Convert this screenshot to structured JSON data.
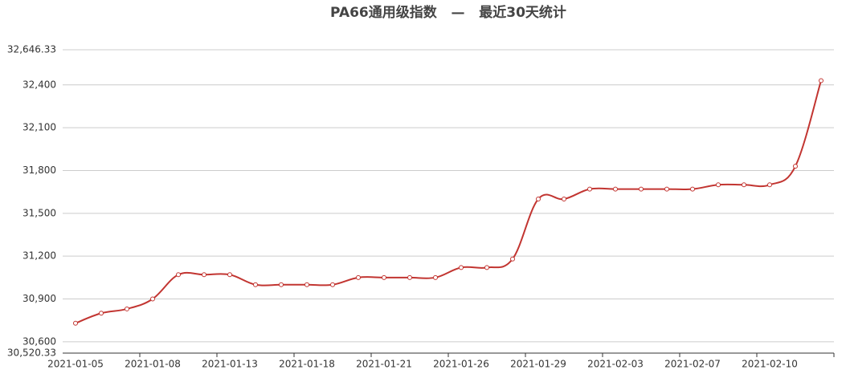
{
  "chart_data": {
    "type": "line",
    "title": "PA66通用级指数   —   最近30天统计",
    "categories": [
      "2021-01-05",
      null,
      null,
      "2021-01-08",
      null,
      null,
      "2021-01-13",
      null,
      null,
      "2021-01-18",
      null,
      null,
      "2021-01-21",
      null,
      null,
      "2021-01-26",
      null,
      null,
      "2021-01-29",
      null,
      null,
      "2021-02-03",
      null,
      null,
      "2021-02-07",
      null,
      null,
      "2021-02-10",
      null,
      null
    ],
    "series": [
      {
        "name": "PA66通用级指数",
        "color": "#c23531",
        "values": [
          30730,
          30800,
          30830,
          30900,
          31070,
          31070,
          31070,
          31000,
          31000,
          31000,
          31000,
          31050,
          31050,
          31050,
          31050,
          31120,
          31120,
          31180,
          31600,
          31600,
          31670,
          31670,
          31670,
          31670,
          31670,
          31700,
          31700,
          31700,
          31830,
          32430
        ]
      }
    ],
    "ylim": [
      30520.33,
      32646.33
    ],
    "yticks": [
      {
        "value": 30520.33,
        "label": "30,520.33"
      },
      {
        "value": 30600,
        "label": "30,600"
      },
      {
        "value": 30900,
        "label": "30,900"
      },
      {
        "value": 31200,
        "label": "31,200"
      },
      {
        "value": 31500,
        "label": "31,500"
      },
      {
        "value": 31800,
        "label": "31,800"
      },
      {
        "value": 32100,
        "label": "32,100"
      },
      {
        "value": 32400,
        "label": "32,400"
      },
      {
        "value": 32646.33,
        "label": "32,646.33"
      }
    ],
    "grid": true
  }
}
